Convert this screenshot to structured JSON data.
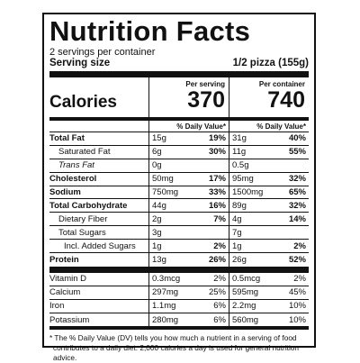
{
  "title": "Nutrition Facts",
  "servings_per_container": "2 servings per container",
  "serving_size_label": "Serving size",
  "serving_size_value": "1/2 pizza (155g)",
  "calories_label": "Calories",
  "per_serving_label": "Per serving",
  "per_container_label": "Per container",
  "calories_per_serving": "370",
  "calories_per_container": "740",
  "dv_header": "% Daily Value*",
  "nutrients": [
    {
      "name": "Total Fat",
      "amt1": "15g",
      "pct1": "19%",
      "amt2": "31g",
      "pct2": "40%"
    },
    {
      "name": "Saturated Fat",
      "amt1": "6g",
      "pct1": "30%",
      "amt2": "11g",
      "pct2": "55%"
    },
    {
      "name": "Trans Fat",
      "amt1": "0g",
      "pct1": "",
      "amt2": "0.5g",
      "pct2": ""
    },
    {
      "name": "Cholesterol",
      "amt1": "50mg",
      "pct1": "17%",
      "amt2": "95mg",
      "pct2": "32%"
    },
    {
      "name": "Sodium",
      "amt1": "750mg",
      "pct1": "33%",
      "amt2": "1500mg",
      "pct2": "65%"
    },
    {
      "name": "Total Carbohydrate",
      "amt1": "44g",
      "pct1": "16%",
      "amt2": "89g",
      "pct2": "32%"
    },
    {
      "name": "Dietary Fiber",
      "amt1": "2g",
      "pct1": "7%",
      "amt2": "4g",
      "pct2": "14%"
    },
    {
      "name": "Total Sugars",
      "amt1": "3g",
      "pct1": "",
      "amt2": "7g",
      "pct2": ""
    },
    {
      "name": "Incl. Added Sugars",
      "amt1": "1g",
      "pct1": "2%",
      "amt2": "1g",
      "pct2": "2%"
    },
    {
      "name": "Protein",
      "amt1": "13g",
      "pct1": "26%",
      "amt2": "26g",
      "pct2": "52%"
    }
  ],
  "vitamins": [
    {
      "name": "Vitamin D",
      "amt1": "0.3mcg",
      "pct1": "2%",
      "amt2": "0.5mcg",
      "pct2": "2%"
    },
    {
      "name": "Calcium",
      "amt1": "297mg",
      "pct1": "25%",
      "amt2": "595mg",
      "pct2": "45%"
    },
    {
      "name": "Iron",
      "amt1": "1.1mg",
      "pct1": "6%",
      "amt2": "2.2mg",
      "pct2": "10%"
    },
    {
      "name": "Potassium",
      "amt1": "280mg",
      "pct1": "6%",
      "amt2": "560mg",
      "pct2": "10%"
    }
  ],
  "footnote": "* The % Daily Value (DV) tells you how much a nutrient in a serving of food contributes to a daily diet. 2,000 calories a day is used for general nutrition advice."
}
